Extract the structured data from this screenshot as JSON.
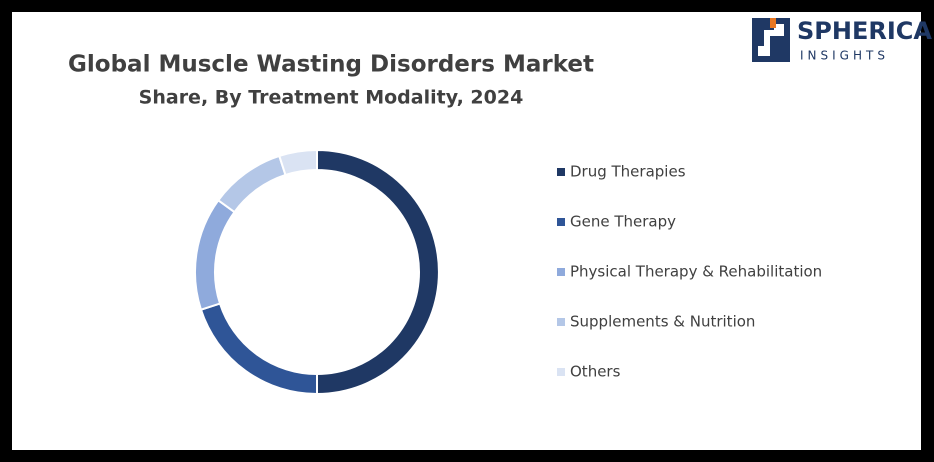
{
  "chart_data": {
    "type": "donut",
    "title": "Global Muscle Wasting Disorders Market",
    "subtitle": "Share, By Treatment Modality, 2024",
    "categories": [
      "Drug Therapies",
      "Gene Therapy",
      "Physical Therapy & Rehabilitation",
      "Supplements & Nutrition",
      "Others"
    ],
    "values": [
      50,
      20,
      15,
      10,
      5
    ],
    "colors": [
      "#1f3864",
      "#2f5597",
      "#8faadc",
      "#b4c7e7",
      "#dae3f3"
    ],
    "legend": "right"
  },
  "logo": {
    "name": "SPHERICAL",
    "tagline": "INSIGHTS"
  }
}
